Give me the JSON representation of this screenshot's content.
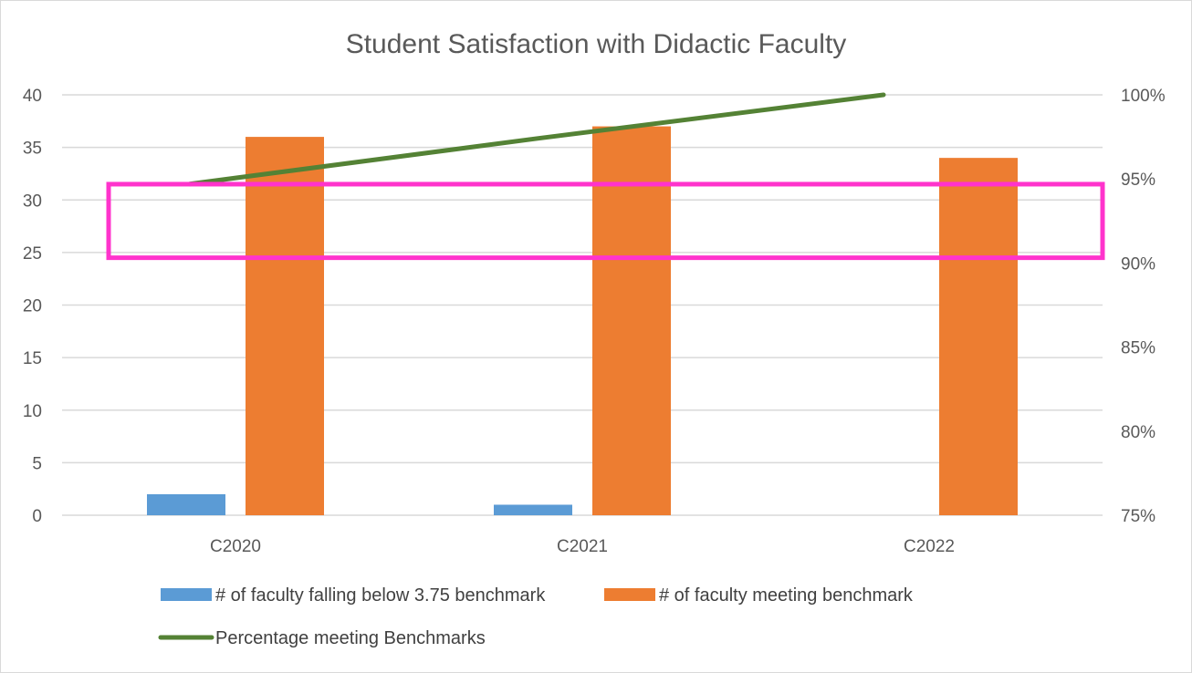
{
  "chart_data": {
    "type": "bar",
    "title": "Student Satisfaction with Didactic Faculty",
    "categories": [
      "C2020",
      "C2021",
      "C2022"
    ],
    "series": [
      {
        "name": "# of faculty falling below 3.75 benchmark",
        "kind": "bar",
        "axis": "left",
        "color": "#5b9bd5",
        "values": [
          2,
          1,
          0
        ]
      },
      {
        "name": "# of faculty meeting benchmark",
        "kind": "bar",
        "axis": "left",
        "color": "#ed7d31",
        "values": [
          36,
          37,
          34
        ]
      },
      {
        "name": "Percentage meeting Benchmarks",
        "kind": "line",
        "axis": "right",
        "color": "#548235",
        "values": [
          0.947,
          0.974,
          1.0
        ]
      }
    ],
    "y_left": {
      "min": 0,
      "max": 40,
      "step": 5,
      "ticks": [
        "0",
        "5",
        "10",
        "15",
        "20",
        "25",
        "30",
        "35",
        "40"
      ]
    },
    "y_right": {
      "min": 0.75,
      "max": 1.0,
      "step": 0.05,
      "ticks": [
        "75%",
        "80%",
        "85%",
        "90%",
        "95%",
        "100%"
      ]
    },
    "grid": true,
    "legend_position": "bottom",
    "highlight_box": {
      "color": "#ff33cc",
      "y_left_range": [
        24.5,
        31.5
      ]
    }
  }
}
